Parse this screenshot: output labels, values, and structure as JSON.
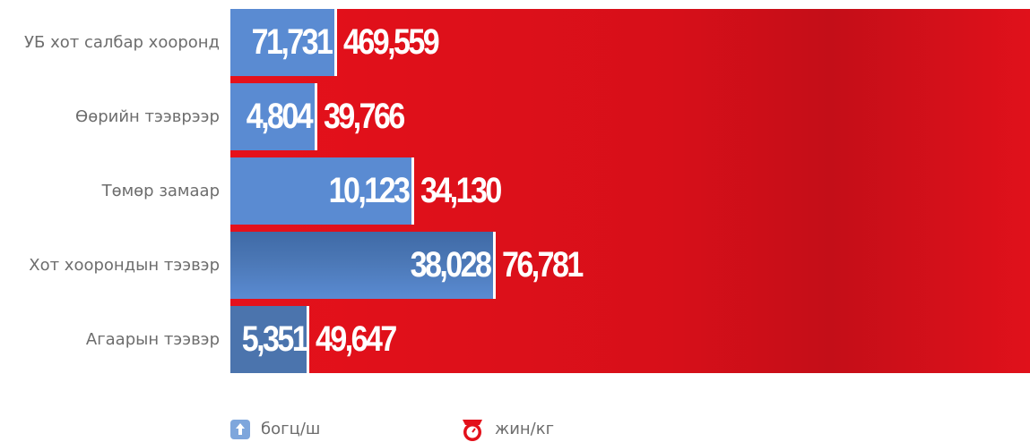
{
  "rows": [
    {
      "label": "УБ хот салбар хооронд",
      "count": "71,731",
      "weight": "469,559"
    },
    {
      "label": "Өөрийн тээврээр",
      "count": "4,804",
      "weight": "39,766"
    },
    {
      "label": "Төмөр замаар",
      "count": "10,123",
      "weight": "34,130"
    },
    {
      "label": "Хот хоорондын тээвэр",
      "count": "38,028",
      "weight": "76,781"
    },
    {
      "label": "Агаарын тээвэр",
      "count": "5,351",
      "weight": "49,647"
    }
  ],
  "legend": {
    "count_label": "богц/ш",
    "weight_label": "жин/кг"
  }
}
